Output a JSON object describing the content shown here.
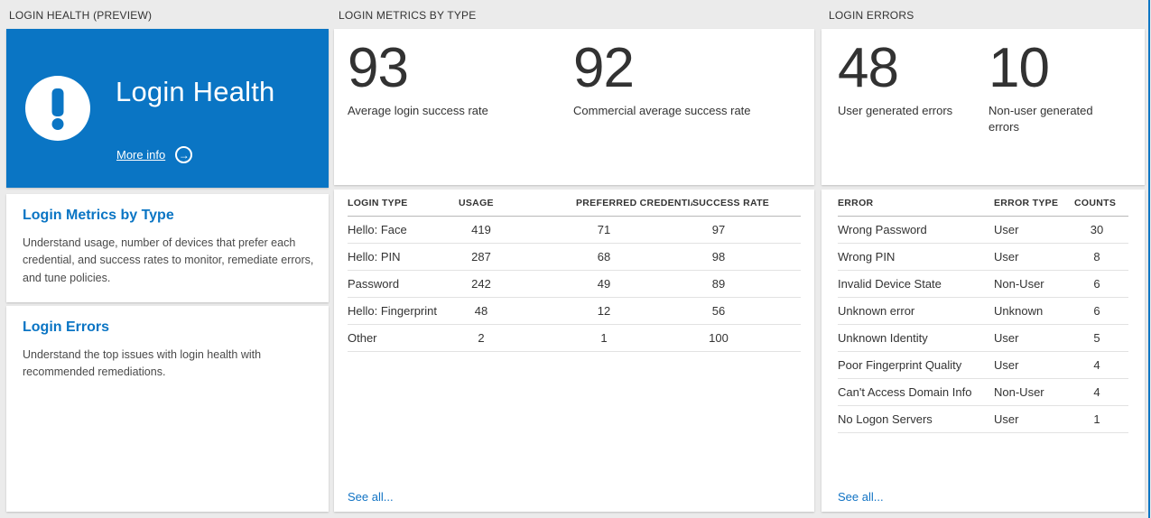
{
  "colors": {
    "tile_blue": "#0a75c4",
    "link_blue": "#1173c4",
    "background": "#ebebeb",
    "text_dark": "#333333"
  },
  "icons": {
    "alert": "exclamation-circle",
    "arrow_right_glyph": "→"
  },
  "panels": {
    "health": {
      "header": "LOGIN HEALTH (PREVIEW)",
      "tile": {
        "title": "Login Health",
        "more_info_label": "More info"
      },
      "sections": [
        {
          "title": "Login Metrics by Type",
          "description": "Understand usage, number of devices that prefer each credential, and success rates to monitor, remediate errors, and tune policies."
        },
        {
          "title": "Login Errors",
          "description": "Understand the top issues with login health with recommended remediations."
        }
      ]
    },
    "metrics": {
      "header": "LOGIN METRICS BY TYPE",
      "stats": [
        {
          "value": "93",
          "label": "Average login success rate"
        },
        {
          "value": "92",
          "label": "Commercial average success rate"
        }
      ],
      "table": {
        "columns": [
          "LOGIN TYPE",
          "USAGE",
          "PREFERRED CREDENTIAL",
          "SUCCESS RATE"
        ],
        "rows": [
          [
            "Hello: Face",
            "419",
            "71",
            "97"
          ],
          [
            "Hello: PIN",
            "287",
            "68",
            "98"
          ],
          [
            "Password",
            "242",
            "49",
            "89"
          ],
          [
            "Hello: Fingerprint",
            "48",
            "12",
            "56"
          ],
          [
            "Other",
            "2",
            "1",
            "100"
          ]
        ]
      },
      "see_all_label": "See all..."
    },
    "errors": {
      "header": "LOGIN ERRORS",
      "stats": [
        {
          "value": "48",
          "label": "User generated errors"
        },
        {
          "value": "10",
          "label": "Non-user generated errors"
        }
      ],
      "table": {
        "columns": [
          "ERROR",
          "ERROR TYPE",
          "COUNTS"
        ],
        "rows": [
          [
            "Wrong Password",
            "User",
            "30"
          ],
          [
            "Wrong PIN",
            "User",
            "8"
          ],
          [
            "Invalid Device State",
            "Non-User",
            "6"
          ],
          [
            "Unknown error",
            "Unknown",
            "6"
          ],
          [
            "Unknown Identity",
            "User",
            "5"
          ],
          [
            "Poor Fingerprint Quality",
            "User",
            "4"
          ],
          [
            "Can't Access Domain Info",
            "Non-User",
            "4"
          ],
          [
            "No Logon Servers",
            "User",
            "1"
          ]
        ]
      },
      "see_all_label": "See all..."
    }
  }
}
